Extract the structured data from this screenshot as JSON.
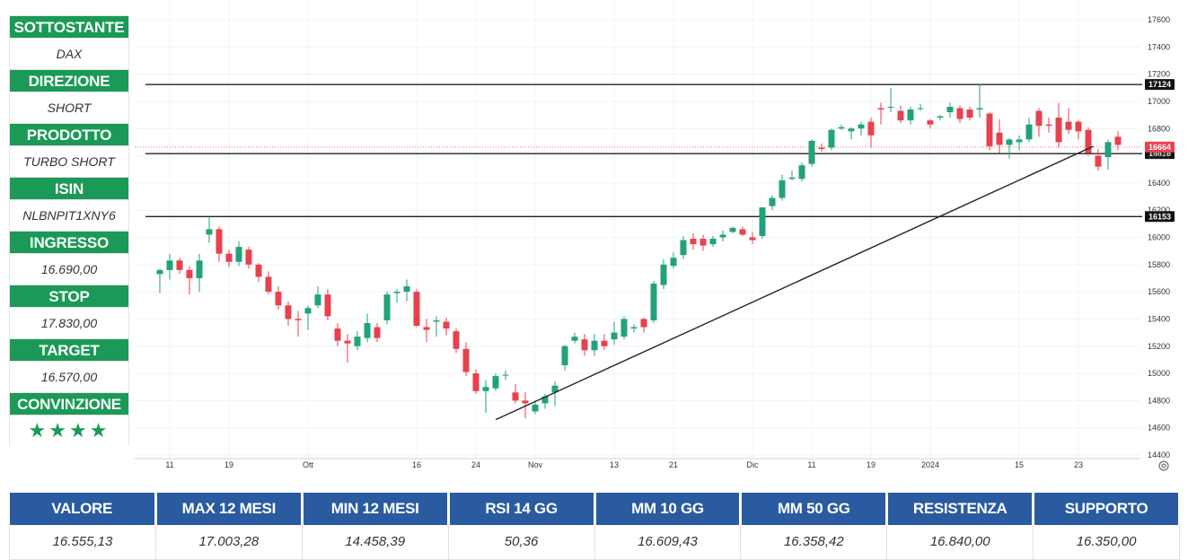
{
  "sidebar": [
    {
      "label": "SOTTOSTANTE",
      "value": "DAX"
    },
    {
      "label": "DIREZIONE",
      "value": "SHORT"
    },
    {
      "label": "PRODOTTO",
      "value": "TURBO SHORT"
    },
    {
      "label": "ISIN",
      "value": "NLBNPIT1XNY6"
    },
    {
      "label": "INGRESSO",
      "value": "16.690,00"
    },
    {
      "label": "STOP",
      "value": "17.830,00"
    },
    {
      "label": "TARGET",
      "value": "16.570,00"
    },
    {
      "label": "CONVINZIONE",
      "value": "★★★★"
    }
  ],
  "stats": {
    "headers": [
      "VALORE",
      "MAX 12 MESI",
      "MIN 12 MESI",
      "RSI 14 GG",
      "MM 10 GG",
      "MM 50 GG",
      "RESISTENZA",
      "SUPPORTO"
    ],
    "values": [
      "16.555,13",
      "17.003,28",
      "14.458,39",
      "50,36",
      "16.609,43",
      "16.358,42",
      "16.840,00",
      "16.350,00"
    ]
  },
  "colors": {
    "up": "#22a27a",
    "down": "#e8414e",
    "label_bg": "#1a9a56",
    "header_bg": "#2a5ba0"
  },
  "chart_data": {
    "type": "candlestick",
    "ylim": [
      14400,
      17600
    ],
    "y_ticks": [
      "17600",
      "17400",
      "17200",
      "17000",
      "16800",
      "16600",
      "16400",
      "16200",
      "16000",
      "15800",
      "15600",
      "15400",
      "15200",
      "15000",
      "14800",
      "14600",
      "14400"
    ],
    "x_ticks": [
      {
        "label": "11",
        "index": 1
      },
      {
        "label": "19",
        "index": 7
      },
      {
        "label": "Ott",
        "index": 15
      },
      {
        "label": "16",
        "index": 26
      },
      {
        "label": "24",
        "index": 32
      },
      {
        "label": "Nov",
        "index": 38
      },
      {
        "label": "13",
        "index": 46
      },
      {
        "label": "21",
        "index": 52
      },
      {
        "label": "Dic",
        "index": 60
      },
      {
        "label": "11",
        "index": 66
      },
      {
        "label": "19",
        "index": 72
      },
      {
        "label": "2024",
        "index": 78
      },
      {
        "label": "15",
        "index": 87
      },
      {
        "label": "23",
        "index": 93
      }
    ],
    "horizontal_levels": [
      {
        "value": 17124,
        "label": "17124"
      },
      {
        "value": 16616,
        "label": "16616"
      },
      {
        "value": 16153,
        "label": "16153"
      }
    ],
    "current_price": {
      "value": 16664,
      "label": "16664"
    },
    "trendline": {
      "from": {
        "index": 34,
        "value": 14660
      },
      "to": {
        "index": 94.5,
        "value": 16670
      }
    },
    "candles": [
      [
        15730,
        15770,
        15590,
        15760
      ],
      [
        15760,
        15880,
        15690,
        15830
      ],
      [
        15830,
        15850,
        15730,
        15760
      ],
      [
        15760,
        15790,
        15580,
        15700
      ],
      [
        15700,
        15880,
        15600,
        15830
      ],
      [
        16020,
        16150,
        15960,
        16060
      ],
      [
        16060,
        16080,
        15820,
        15880
      ],
      [
        15880,
        15910,
        15780,
        15820
      ],
      [
        15820,
        15970,
        15790,
        15930
      ],
      [
        15910,
        15930,
        15770,
        15800
      ],
      [
        15800,
        15810,
        15670,
        15710
      ],
      [
        15710,
        15750,
        15580,
        15600
      ],
      [
        15600,
        15640,
        15470,
        15500
      ],
      [
        15500,
        15530,
        15350,
        15400
      ],
      [
        15400,
        15460,
        15270,
        15390
      ],
      [
        15440,
        15500,
        15320,
        15480
      ],
      [
        15500,
        15640,
        15480,
        15580
      ],
      [
        15580,
        15620,
        15390,
        15420
      ],
      [
        15330,
        15370,
        15200,
        15240
      ],
      [
        15240,
        15290,
        15080,
        15220
      ],
      [
        15200,
        15310,
        15170,
        15270
      ],
      [
        15260,
        15440,
        15230,
        15370
      ],
      [
        15340,
        15370,
        15230,
        15260
      ],
      [
        15390,
        15600,
        15360,
        15580
      ],
      [
        15590,
        15620,
        15520,
        15600
      ],
      [
        15600,
        15690,
        15530,
        15640
      ],
      [
        15600,
        15620,
        15340,
        15350
      ],
      [
        15340,
        15400,
        15230,
        15320
      ],
      [
        15380,
        15420,
        15270,
        15390
      ],
      [
        15380,
        15410,
        15280,
        15330
      ],
      [
        15310,
        15330,
        15150,
        15180
      ],
      [
        15180,
        15230,
        14980,
        15010
      ],
      [
        15000,
        15030,
        14850,
        14870
      ],
      [
        14870,
        14950,
        14710,
        14900
      ],
      [
        14890,
        15000,
        14870,
        14980
      ],
      [
        14990,
        15020,
        14950,
        14990
      ],
      [
        14860,
        14920,
        14780,
        14800
      ],
      [
        14800,
        14860,
        14670,
        14780
      ],
      [
        14720,
        14800,
        14700,
        14770
      ],
      [
        14780,
        14850,
        14740,
        14830
      ],
      [
        14860,
        14940,
        14760,
        14910
      ],
      [
        15060,
        15210,
        15020,
        15200
      ],
      [
        15240,
        15300,
        15220,
        15270
      ],
      [
        15250,
        15290,
        15130,
        15170
      ],
      [
        15170,
        15290,
        15130,
        15240
      ],
      [
        15240,
        15290,
        15170,
        15200
      ],
      [
        15250,
        15380,
        15210,
        15300
      ],
      [
        15270,
        15420,
        15250,
        15400
      ],
      [
        15330,
        15360,
        15300,
        15340
      ],
      [
        15400,
        15410,
        15300,
        15340
      ],
      [
        15390,
        15680,
        15370,
        15660
      ],
      [
        15650,
        15840,
        15620,
        15800
      ],
      [
        15790,
        15890,
        15770,
        15850
      ],
      [
        15870,
        16010,
        15840,
        15980
      ],
      [
        15990,
        16030,
        15910,
        15950
      ],
      [
        15990,
        16020,
        15900,
        15940
      ],
      [
        15950,
        16010,
        15930,
        15990
      ],
      [
        16000,
        16050,
        15970,
        16020
      ],
      [
        16040,
        16080,
        16030,
        16070
      ],
      [
        16060,
        16080,
        16010,
        16020
      ],
      [
        16000,
        16040,
        15950,
        15980
      ],
      [
        16010,
        16220,
        15990,
        16220
      ],
      [
        16230,
        16310,
        16200,
        16290
      ],
      [
        16290,
        16460,
        16270,
        16420
      ],
      [
        16430,
        16490,
        16420,
        16440
      ],
      [
        16430,
        16550,
        16410,
        16530
      ],
      [
        16540,
        16720,
        16520,
        16710
      ],
      [
        16660,
        16690,
        16630,
        16650
      ],
      [
        16660,
        16800,
        16640,
        16790
      ],
      [
        16800,
        16830,
        16790,
        16810
      ],
      [
        16780,
        16810,
        16720,
        16800
      ],
      [
        16800,
        16850,
        16750,
        16830
      ],
      [
        16850,
        16880,
        16660,
        16750
      ],
      [
        16950,
        16990,
        16830,
        16940
      ],
      [
        16960,
        17100,
        16920,
        16960
      ],
      [
        16930,
        16970,
        16840,
        16860
      ],
      [
        16860,
        16960,
        16830,
        16940
      ],
      [
        16950,
        16980,
        16930,
        16950
      ],
      [
        16860,
        16870,
        16800,
        16830
      ],
      [
        16880,
        16900,
        16860,
        16890
      ],
      [
        16920,
        16990,
        16880,
        16960
      ],
      [
        16950,
        16970,
        16840,
        16870
      ],
      [
        16940,
        16960,
        16860,
        16880
      ],
      [
        16940,
        17130,
        16880,
        16950
      ],
      [
        16910,
        16920,
        16640,
        16670
      ],
      [
        16770,
        16870,
        16620,
        16680
      ],
      [
        16680,
        16730,
        16580,
        16720
      ],
      [
        16700,
        16750,
        16640,
        16720
      ],
      [
        16720,
        16880,
        16700,
        16830
      ],
      [
        16930,
        16950,
        16740,
        16820
      ],
      [
        16830,
        16880,
        16770,
        16820
      ],
      [
        16880,
        16990,
        16660,
        16700
      ],
      [
        16850,
        16950,
        16760,
        16790
      ],
      [
        16850,
        16860,
        16720,
        16780
      ],
      [
        16790,
        16810,
        16600,
        16620
      ],
      [
        16600,
        16650,
        16490,
        16520
      ],
      [
        16590,
        16720,
        16500,
        16700
      ],
      [
        16740,
        16780,
        16640,
        16680
      ]
    ]
  }
}
